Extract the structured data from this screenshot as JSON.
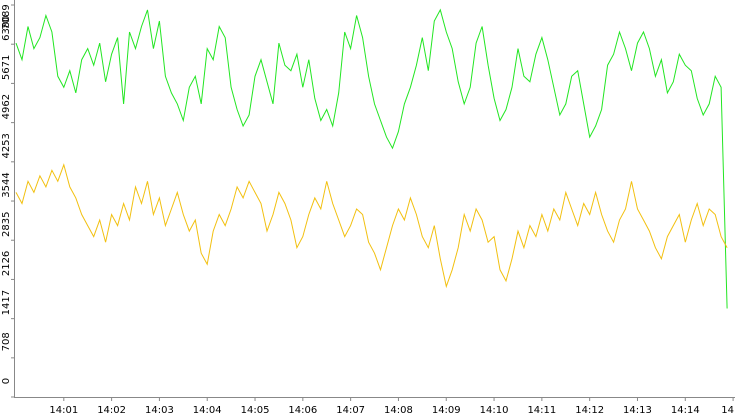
{
  "chart_data": {
    "type": "line",
    "x": [
      0,
      0.125,
      0.25,
      0.375,
      0.5,
      0.625,
      0.75,
      0.875,
      1,
      1.125,
      1.25,
      1.375,
      1.5,
      1.625,
      1.75,
      1.875,
      2,
      2.125,
      2.25,
      2.375,
      2.5,
      2.625,
      2.75,
      2.875,
      3,
      3.125,
      3.25,
      3.375,
      3.5,
      3.625,
      3.75,
      3.875,
      4,
      4.125,
      4.25,
      4.375,
      4.5,
      4.625,
      4.75,
      4.875,
      5,
      5.125,
      5.25,
      5.375,
      5.5,
      5.625,
      5.75,
      5.875,
      6,
      6.125,
      6.25,
      6.375,
      6.5,
      6.625,
      6.75,
      6.875,
      7,
      7.125,
      7.25,
      7.375,
      7.5,
      7.625,
      7.75,
      7.875,
      8,
      8.125,
      8.25,
      8.375,
      8.5,
      8.625,
      8.75,
      8.875,
      9,
      9.125,
      9.25,
      9.375,
      9.5,
      9.625,
      9.75,
      9.875,
      10,
      10.125,
      10.25,
      10.375,
      10.5,
      10.625,
      10.75,
      10.875,
      11,
      11.125,
      11.25,
      11.375,
      11.5,
      11.625,
      11.75,
      11.875,
      12,
      12.125,
      12.25,
      12.375,
      12.5,
      12.625,
      12.75,
      12.875,
      13,
      13.125,
      13.25,
      13.375,
      13.5,
      13.625,
      13.75,
      13.875,
      14,
      14.125,
      14.25,
      14.375,
      14.5,
      14.625,
      14.75,
      14.875
    ],
    "series": [
      {
        "color": "#22e622",
        "values": [
          6400,
          6100,
          6700,
          6300,
          6500,
          6900,
          6600,
          5800,
          5600,
          5900,
          5500,
          6100,
          6300,
          6000,
          6400,
          5700,
          6200,
          6500,
          5300,
          6600,
          6300,
          6700,
          7000,
          6300,
          6800,
          5800,
          5500,
          5300,
          5000,
          5600,
          5800,
          5300,
          6300,
          6100,
          6700,
          6500,
          5600,
          5200,
          4900,
          5100,
          5800,
          6100,
          5700,
          5300,
          6400,
          6000,
          5900,
          6200,
          5600,
          6100,
          5400,
          5000,
          5200,
          4900,
          5500,
          6600,
          6300,
          6900,
          6500,
          5800,
          5300,
          5000,
          4700,
          4500,
          4800,
          5300,
          5600,
          6000,
          6500,
          5900,
          6800,
          7000,
          6600,
          6300,
          5700,
          5300,
          5600,
          6400,
          6700,
          6000,
          5400,
          5000,
          5200,
          5600,
          6300,
          5800,
          5700,
          6200,
          6500,
          6100,
          5600,
          5100,
          5300,
          5800,
          5900,
          5300,
          4700,
          4900,
          5200,
          6000,
          6200,
          6600,
          6300,
          5900,
          6400,
          6600,
          6300,
          5800,
          6100,
          5500,
          5700,
          6200,
          6000,
          5900,
          5400,
          5100,
          5300,
          5800,
          5600,
          1600
        ]
      },
      {
        "color": "#f2c010",
        "values": [
          3700,
          3500,
          3900,
          3700,
          4000,
          3800,
          4100,
          3900,
          4200,
          3800,
          3600,
          3300,
          3100,
          2900,
          3200,
          2800,
          3300,
          3100,
          3500,
          3200,
          3800,
          3500,
          3900,
          3300,
          3600,
          3100,
          3400,
          3700,
          3300,
          3000,
          3200,
          2600,
          2400,
          3000,
          3300,
          3100,
          3400,
          3800,
          3600,
          3900,
          3700,
          3500,
          3000,
          3300,
          3700,
          3500,
          3200,
          2700,
          2900,
          3300,
          3600,
          3400,
          3900,
          3500,
          3200,
          2900,
          3100,
          3400,
          3300,
          2800,
          2600,
          2300,
          2700,
          3100,
          3400,
          3200,
          3600,
          3300,
          2900,
          2700,
          3100,
          2500,
          2000,
          2300,
          2700,
          3300,
          3000,
          3400,
          3200,
          2800,
          2900,
          2300,
          2100,
          2500,
          3000,
          2700,
          3100,
          2900,
          3300,
          3000,
          3400,
          3200,
          3700,
          3400,
          3100,
          3500,
          3300,
          3700,
          3300,
          3000,
          2800,
          3200,
          3400,
          3900,
          3400,
          3200,
          3000,
          2700,
          2500,
          2900,
          3100,
          3300,
          2800,
          3200,
          3500,
          3100,
          3400,
          3300,
          2900,
          2700
        ]
      }
    ],
    "xlim": [
      0,
      15.04
    ],
    "xticks": [
      {
        "value": 1,
        "label": "14:01"
      },
      {
        "value": 2,
        "label": "14:02"
      },
      {
        "value": 3,
        "label": "14:03"
      },
      {
        "value": 4,
        "label": "14:04"
      },
      {
        "value": 5,
        "label": "14:05"
      },
      {
        "value": 6,
        "label": "14:06"
      },
      {
        "value": 7,
        "label": "14:07"
      },
      {
        "value": 8,
        "label": "14:08"
      },
      {
        "value": 9,
        "label": "14:09"
      },
      {
        "value": 10,
        "label": "14:10"
      },
      {
        "value": 11,
        "label": "14:11"
      },
      {
        "value": 12,
        "label": "14:12"
      },
      {
        "value": 13,
        "label": "14:13"
      },
      {
        "value": 14,
        "label": "14:14"
      },
      {
        "value": 15,
        "label": "14"
      }
    ],
    "ylim": [
      0,
      7089
    ],
    "yticks": [
      0,
      708,
      1417,
      2126,
      2835,
      3544,
      4253,
      4962,
      5671,
      6380,
      7089
    ]
  }
}
